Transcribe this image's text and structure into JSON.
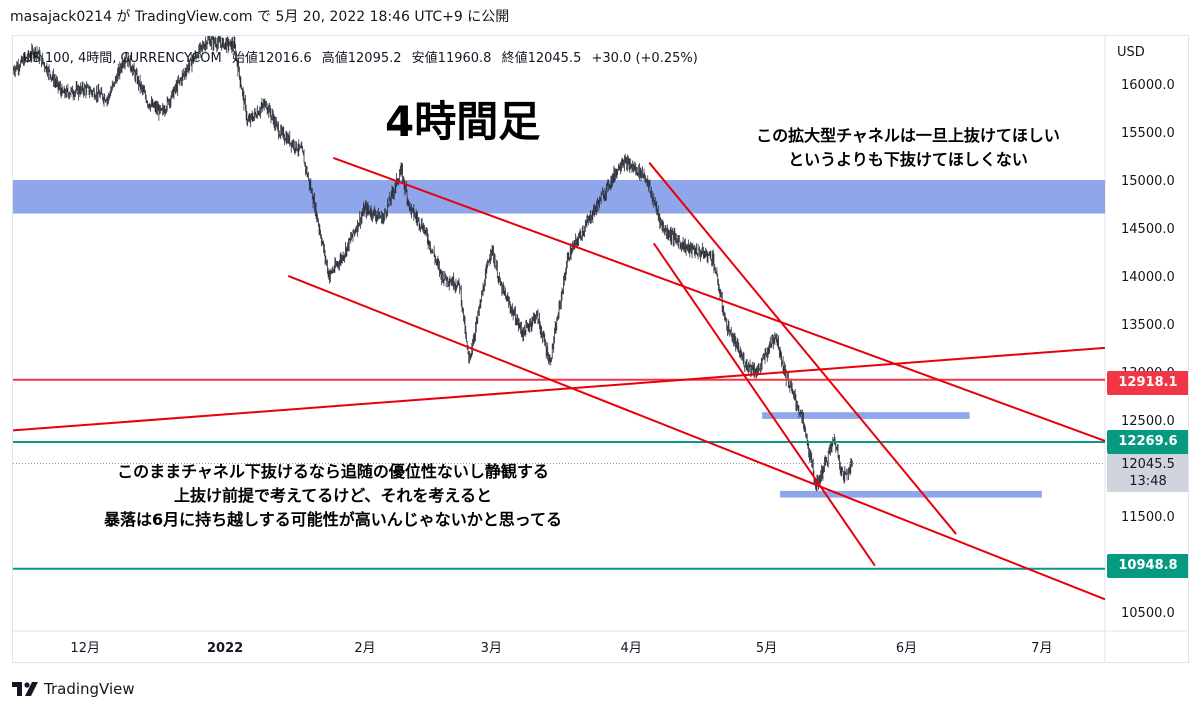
{
  "header": {
    "text": "masajack0214 が TradingView.com で 5月 20, 2022 18:46 UTC+9 に公開"
  },
  "legend": {
    "symbol": "US 100, 4時間, CURRENCYCOM",
    "open": "始値12016.6",
    "high": "高値12095.2",
    "low": "安値11960.8",
    "close": "終値12045.5",
    "change": "+30.0 (+0.25%)"
  },
  "annotations": {
    "title": "4時間足",
    "note_right_line1": "この拡大型チャネルは一旦上抜けてほしい",
    "note_right_line2": "というよりも下抜けてほしくない",
    "note_left_line1": "このままチャネル下抜けるなら追随の優位性ないし静観する",
    "note_left_line2": "上抜け前提で考えてるけど、それを考えると",
    "note_left_line3": "暴落は6月に持ち越しする可能性が高いんじゃないかと思ってる"
  },
  "price_axis": {
    "currency": "USD",
    "tag_red": "12918.1",
    "tag_teal_upper": "12269.6",
    "tag_current": "12045.5",
    "tag_current_time": "13:48",
    "tag_teal_lower": "10948.8"
  },
  "footer": {
    "brand": "TradingView"
  },
  "colors": {
    "trendline": "#e8000b",
    "horizontal_red": "#f23645",
    "horizontal_teal": "#089981",
    "zone": "#7b96e6",
    "candle": "#2a2e39"
  },
  "chart_data": {
    "type": "candlestick",
    "ylabel": "USD",
    "ylim": [
      10300,
      16500
    ],
    "y_ticks": [
      16000,
      15500,
      15000,
      14500,
      14000,
      13500,
      13000,
      12500,
      12000,
      11500,
      11000,
      10500
    ],
    "y_tick_labels": [
      "16000.0",
      "15500.0",
      "15000.0",
      "14500.0",
      "14000.0",
      "13500.0",
      "13000.0",
      "12500.0",
      "12000.0",
      "11500.0",
      "11000.0",
      "10500.0"
    ],
    "x_tick_labels": [
      "12月",
      "2022",
      "2月",
      "3月",
      "4月",
      "5月",
      "6月",
      "7月"
    ],
    "x_tick_dates": [
      "2021-12-01",
      "2022-01-01",
      "2022-02-01",
      "2022-03-01",
      "2022-04-01",
      "2022-05-01",
      "2022-06-01",
      "2022-07-01"
    ],
    "xlim": [
      "2021-11-15",
      "2022-07-15"
    ],
    "close_path": [
      [
        "2021-11-15",
        16150
      ],
      [
        "2021-11-20",
        16350
      ],
      [
        "2021-11-26",
        15900
      ],
      [
        "2021-12-01",
        15950
      ],
      [
        "2021-12-06",
        15850
      ],
      [
        "2021-12-10",
        16300
      ],
      [
        "2021-12-15",
        15800
      ],
      [
        "2021-12-18",
        15700
      ],
      [
        "2021-12-24",
        16200
      ],
      [
        "2021-12-28",
        16450
      ],
      [
        "2022-01-03",
        16400
      ],
      [
        "2022-01-06",
        15600
      ],
      [
        "2022-01-10",
        15800
      ],
      [
        "2022-01-13",
        15500
      ],
      [
        "2022-01-18",
        15300
      ],
      [
        "2022-01-21",
        14700
      ],
      [
        "2022-01-24",
        14000
      ],
      [
        "2022-01-27",
        14200
      ],
      [
        "2022-02-01",
        14700
      ],
      [
        "2022-02-05",
        14600
      ],
      [
        "2022-02-09",
        15100
      ],
      [
        "2022-02-11",
        14700
      ],
      [
        "2022-02-14",
        14500
      ],
      [
        "2022-02-18",
        14000
      ],
      [
        "2022-02-22",
        13900
      ],
      [
        "2022-02-24",
        13100
      ],
      [
        "2022-03-01",
        14300
      ],
      [
        "2022-03-03",
        13900
      ],
      [
        "2022-03-08",
        13400
      ],
      [
        "2022-03-11",
        13600
      ],
      [
        "2022-03-14",
        13100
      ],
      [
        "2022-03-18",
        14200
      ],
      [
        "2022-03-24",
        14700
      ],
      [
        "2022-03-30",
        15200
      ],
      [
        "2022-04-04",
        15050
      ],
      [
        "2022-04-08",
        14500
      ],
      [
        "2022-04-13",
        14300
      ],
      [
        "2022-04-19",
        14200
      ],
      [
        "2022-04-22",
        13500
      ],
      [
        "2022-04-26",
        13100
      ],
      [
        "2022-04-29",
        13000
      ],
      [
        "2022-05-03",
        13400
      ],
      [
        "2022-05-05",
        13000
      ],
      [
        "2022-05-09",
        12500
      ],
      [
        "2022-05-12",
        11800
      ],
      [
        "2022-05-16",
        12300
      ],
      [
        "2022-05-18",
        11900
      ],
      [
        "2022-05-20",
        12045.5
      ]
    ],
    "last_close": 12045.5,
    "horizontal_lines": [
      12918.1,
      12269.6,
      10948.8
    ],
    "zones": [
      {
        "from": "2021-11-15",
        "to": "2022-07-15",
        "y_low": 14650,
        "y_high": 15000
      },
      {
        "from": "2022-04-30",
        "to": "2022-06-15",
        "y_low": 12510,
        "y_high": 12580
      },
      {
        "from": "2022-05-04",
        "to": "2022-07-01",
        "y_low": 11690,
        "y_high": 11760
      }
    ],
    "trendlines": [
      {
        "from": [
          "2022-01-25",
          15230
        ],
        "to": [
          "2022-07-15",
          12280
        ]
      },
      {
        "from": [
          "2022-01-15",
          14000
        ],
        "to": [
          "2022-07-15",
          10630
        ]
      },
      {
        "from": [
          "2021-11-15",
          12390
        ],
        "to": [
          "2022-07-15",
          13250
        ]
      },
      {
        "from": [
          "2022-04-05",
          15180
        ],
        "to": [
          "2022-06-12",
          11310
        ]
      },
      {
        "from": [
          "2022-04-06",
          14340
        ],
        "to": [
          "2022-05-25",
          10980
        ]
      }
    ]
  }
}
